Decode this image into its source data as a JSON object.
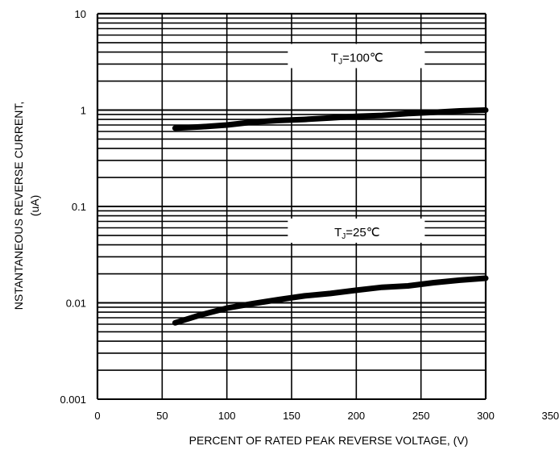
{
  "chart_data": {
    "type": "line",
    "title": "",
    "xlabel": "PERCENT OF RATED PEAK REVERSE VOLTAGE, (V)",
    "ylabel_line1": "NSTANTANEOUS REVERSE CURRENT,",
    "ylabel_line2": "(uA)",
    "xlim": [
      0,
      350
    ],
    "ylim": [
      0.001,
      10
    ],
    "y_scale": "log",
    "grid": true,
    "x_ticks": [
      0,
      50,
      100,
      150,
      200,
      250,
      300,
      350
    ],
    "x_tick_labels": [
      "0",
      "50",
      "100",
      "150",
      "200",
      "250",
      "300",
      "350"
    ],
    "y_ticks": [
      0.001,
      0.01,
      0.1,
      1,
      10
    ],
    "y_tick_labels": [
      "0.001",
      "0.01",
      "0.1",
      "1",
      "10"
    ],
    "series": [
      {
        "name": "TJ=100℃",
        "label_main": "T",
        "label_sub": "J",
        "label_rest": "=100℃",
        "label_anchor": [
          200,
          3.5
        ],
        "x": [
          60,
          80,
          100,
          120,
          140,
          160,
          180,
          200,
          220,
          240,
          260,
          280,
          300
        ],
        "values": [
          0.65,
          0.67,
          0.7,
          0.75,
          0.78,
          0.8,
          0.83,
          0.86,
          0.88,
          0.92,
          0.95,
          0.98,
          1.0
        ]
      },
      {
        "name": "TJ=25℃",
        "label_main": "T",
        "label_sub": "J",
        "label_rest": "=25℃",
        "label_anchor": [
          200,
          0.054
        ],
        "x": [
          60,
          80,
          100,
          120,
          140,
          160,
          180,
          200,
          220,
          240,
          260,
          280,
          300
        ],
        "values": [
          0.0062,
          0.0075,
          0.0088,
          0.0098,
          0.0108,
          0.0118,
          0.0125,
          0.0135,
          0.0145,
          0.015,
          0.0162,
          0.0172,
          0.018
        ]
      }
    ]
  }
}
